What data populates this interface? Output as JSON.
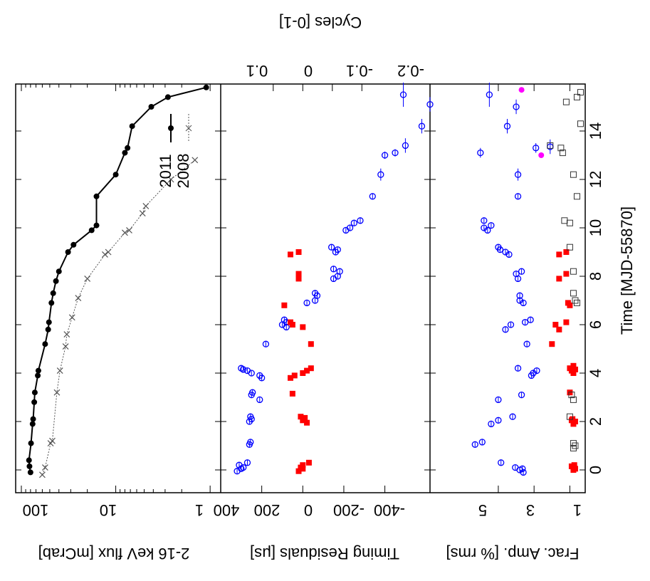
{
  "chart_data": [
    {
      "type": "line",
      "panel": "top",
      "ylabel": "2-16 keV flux [mCrab]",
      "yscale": "log",
      "ylim": [
        0.8,
        100
      ],
      "yticks": [
        100,
        10,
        1
      ],
      "xlim": [
        -0.8,
        15.8
      ],
      "legend": "upper-left",
      "series": [
        {
          "name": "2011",
          "style": "solid-dots",
          "x": [
            -0.1,
            0.15,
            0.4,
            1.1,
            1.9,
            2.1,
            2.8,
            3.2,
            3.9,
            4.1,
            5.2,
            5.8,
            6.1,
            6.9,
            7.3,
            7.8,
            8.2,
            9.0,
            9.3,
            9.9,
            10.1,
            11.3,
            12.2,
            13.1,
            13.3,
            14.2,
            15.0,
            15.4,
            15.8
          ],
          "y": [
            80,
            82,
            83,
            79,
            76,
            75,
            73,
            72,
            67,
            66,
            56,
            52,
            51,
            48,
            46,
            43,
            40,
            32,
            28,
            18,
            16,
            16,
            10,
            8,
            7.5,
            6.7,
            4.2,
            2.8,
            1.1
          ]
        },
        {
          "name": "2008",
          "style": "dotted-crosses",
          "x": [
            -0.2,
            0.1,
            1.1,
            1.2,
            3.2,
            4.1,
            5.1,
            5.6,
            6.3,
            7.1,
            7.9,
            8.9,
            9.0,
            9.8,
            9.9,
            10.6,
            10.9,
            12.0,
            12.8
          ],
          "y": [
            60,
            56,
            49,
            47,
            42,
            39,
            34,
            33,
            29,
            25,
            20,
            13,
            12,
            8.0,
            7.2,
            5.2,
            4.8,
            2.6,
            1.45
          ]
        }
      ]
    },
    {
      "type": "scatter",
      "panel": "middle",
      "ylabel": "Timing Residuals [μs]",
      "ylim": [
        -620,
        400
      ],
      "yticks": [
        400,
        200,
        0,
        -200,
        -400
      ],
      "y2label": "Cycles [0-1]",
      "y2ticks": [
        0.1,
        0,
        -0.1,
        -0.2
      ],
      "series": [
        {
          "color": "#0000ff",
          "marker": "open-circle",
          "x": [
            -0.05,
            0.05,
            0.1,
            0.2,
            0.3,
            1.05,
            1.15,
            2.0,
            2.1,
            2.2,
            2.9,
            3.1,
            3.2,
            3.8,
            3.9,
            4.0,
            4.1,
            4.15,
            4.2,
            5.2,
            5.9,
            6.0,
            6.1,
            6.2,
            6.9,
            7.0,
            7.2,
            7.3,
            7.9,
            8.0,
            8.2,
            8.3,
            9.0,
            9.1,
            9.2,
            9.9,
            10.0,
            10.2,
            10.3,
            11.3,
            12.2,
            13.0,
            13.1,
            13.4,
            14.2,
            15.1,
            15.5
          ],
          "y": [
            320,
            300,
            290,
            310,
            270,
            260,
            255,
            260,
            250,
            255,
            210,
            250,
            245,
            200,
            210,
            250,
            270,
            290,
            300,
            180,
            80,
            100,
            80,
            90,
            -20,
            -60,
            -70,
            -60,
            -150,
            -170,
            -180,
            -150,
            -160,
            -170,
            -140,
            -210,
            -230,
            -250,
            -280,
            -340,
            -380,
            -400,
            -450,
            -500,
            -580,
            -620,
            -490
          ],
          "xerr": [
            0.1,
            0.1,
            0.1,
            0.1,
            0.1,
            0.1,
            0.1,
            0.1,
            0.1,
            0.1,
            0.1,
            0.1,
            0.1,
            0.1,
            0.1,
            0.1,
            0.1,
            0.1,
            0.1,
            0.1,
            0.1,
            0.1,
            0.1,
            0.1,
            0.1,
            0.1,
            0.1,
            0.1,
            0.1,
            0.1,
            0.1,
            0.1,
            0.1,
            0.1,
            0.1,
            0.1,
            0.1,
            0.1,
            0.1,
            0.1,
            0.25,
            0.15,
            0.15,
            0.3,
            0.3,
            0.3,
            0.5
          ]
        },
        {
          "color": "#ff0000",
          "marker": "filled-square",
          "x": [
            -0.05,
            0.05,
            0.1,
            0.2,
            0.3,
            1.95,
            2.05,
            2.15,
            2.2,
            3.15,
            3.8,
            3.9,
            4.0,
            4.1,
            4.2,
            5.2,
            5.9,
            6.0,
            6.1,
            6.8,
            7.9,
            8.1,
            8.9,
            9.0
          ],
          "y": [
            20,
            0,
            10,
            0,
            -30,
            -20,
            0,
            -10,
            10,
            50,
            60,
            40,
            0,
            -20,
            -40,
            -40,
            0,
            50,
            60,
            90,
            20,
            20,
            60,
            20
          ],
          "xerr": [
            0.1,
            0.1,
            0.1,
            0.1,
            0.1,
            0.1,
            0.1,
            0.1,
            0.1,
            0.1,
            0.1,
            0.1,
            0.1,
            0.1,
            0.1,
            0.1,
            0.1,
            0.1,
            0.1,
            0.1,
            0.1,
            0.1,
            0.1,
            0.1
          ]
        }
      ]
    },
    {
      "type": "scatter",
      "panel": "bottom",
      "ylabel": "Frac. Amp. [% rms]",
      "ylim": [
        0.3,
        8.5
      ],
      "yticks": [
        5,
        3,
        1
      ],
      "xlabel": "Time [MJD-55870]",
      "xlim": [
        -0.8,
        15.8
      ],
      "xticks": [
        0,
        2,
        4,
        6,
        8,
        10,
        12,
        14
      ],
      "series": [
        {
          "color": "#0000ff",
          "marker": "open-circle",
          "x": [
            -0.1,
            0.0,
            0.05,
            0.1,
            0.3,
            1.05,
            1.15,
            1.9,
            2.05,
            2.2,
            2.9,
            3.1,
            3.9,
            4.0,
            4.1,
            4.2,
            5.2,
            5.8,
            6.0,
            6.1,
            6.2,
            6.9,
            7.0,
            7.2,
            7.9,
            8.1,
            8.2,
            8.9,
            9.0,
            9.1,
            9.2,
            9.9,
            10.0,
            10.1,
            10.3,
            11.3,
            12.2,
            13.1,
            13.3,
            13.35,
            14.2,
            15.0,
            15.5
          ],
          "y": [
            3.6,
            3.8,
            3.65,
            4.05,
            4.85,
            6.3,
            5.9,
            5.4,
            5.0,
            4.2,
            5.0,
            3.7,
            3.15,
            3.05,
            2.85,
            3.9,
            3.4,
            4.6,
            4.3,
            3.5,
            3.2,
            3.6,
            3.8,
            3.8,
            3.9,
            4.0,
            3.7,
            4.4,
            4.6,
            4.9,
            5.0,
            5.6,
            5.8,
            5.4,
            5.8,
            3.9,
            3.9,
            6.0,
            2.9,
            2.1,
            4.5,
            4.0,
            5.5
          ],
          "xerr": [
            0.1,
            0.1,
            0.1,
            0.1,
            0.1,
            0.1,
            0.1,
            0.1,
            0.1,
            0.1,
            0.1,
            0.1,
            0.1,
            0.1,
            0.1,
            0.1,
            0.1,
            0.1,
            0.1,
            0.1,
            0.1,
            0.1,
            0.1,
            0.1,
            0.1,
            0.1,
            0.1,
            0.1,
            0.1,
            0.1,
            0.1,
            0.1,
            0.1,
            0.1,
            0.1,
            0.1,
            0.25,
            0.2,
            0.2,
            0.3,
            0.3,
            0.3,
            0.5
          ]
        },
        {
          "color": "#ff0000",
          "marker": "filled-square",
          "x": [
            0.0,
            0.05,
            0.1,
            0.15,
            0.2,
            1.9,
            2.0,
            2.05,
            2.1,
            3.2,
            4.0,
            4.1,
            4.15,
            4.2,
            4.3,
            5.2,
            5.8,
            6.0,
            6.1,
            6.8,
            6.9,
            7.9,
            8.1,
            8.9,
            9.0
          ],
          "y": [
            0.8,
            0.7,
            0.8,
            0.9,
            0.75,
            0.8,
            0.7,
            0.9,
            0.85,
            1.0,
            0.8,
            0.9,
            0.7,
            1.0,
            0.8,
            2.0,
            1.6,
            1.8,
            1.2,
            1.0,
            1.1,
            1.6,
            1.2,
            1.6,
            1.2
          ],
          "xerr": [
            0.1,
            0.1,
            0.1,
            0.1,
            0.1,
            0.1,
            0.1,
            0.1,
            0.1,
            0.1,
            0.1,
            0.1,
            0.1,
            0.1,
            0.1,
            0.1,
            0.1,
            0.1,
            0.1,
            0.1,
            0.1,
            0.1,
            0.1,
            0.1,
            0.1
          ]
        },
        {
          "color": "#333333",
          "marker": "open-square",
          "x": [
            0.9,
            1.0,
            1.1,
            2.2,
            2.9,
            3.1,
            6.9,
            7.0,
            7.3,
            8.2,
            9.2,
            10.2,
            10.3,
            11.3,
            12.2,
            13.1,
            13.3,
            13.4,
            14.3,
            15.2,
            15.4,
            15.6
          ],
          "y": [
            0.8,
            0.7,
            0.8,
            1.0,
            0.8,
            0.9,
            0.6,
            0.7,
            0.8,
            0.8,
            1.0,
            1.0,
            1.3,
            0.6,
            0.8,
            1.4,
            1.5,
            2.1,
            0.4,
            1.2,
            0.6,
            0.4
          ]
        },
        {
          "color": "#ff00ff",
          "marker": "filled-circle",
          "x": [
            13.0,
            15.7
          ],
          "y": [
            2.6,
            3.7
          ]
        }
      ]
    }
  ]
}
